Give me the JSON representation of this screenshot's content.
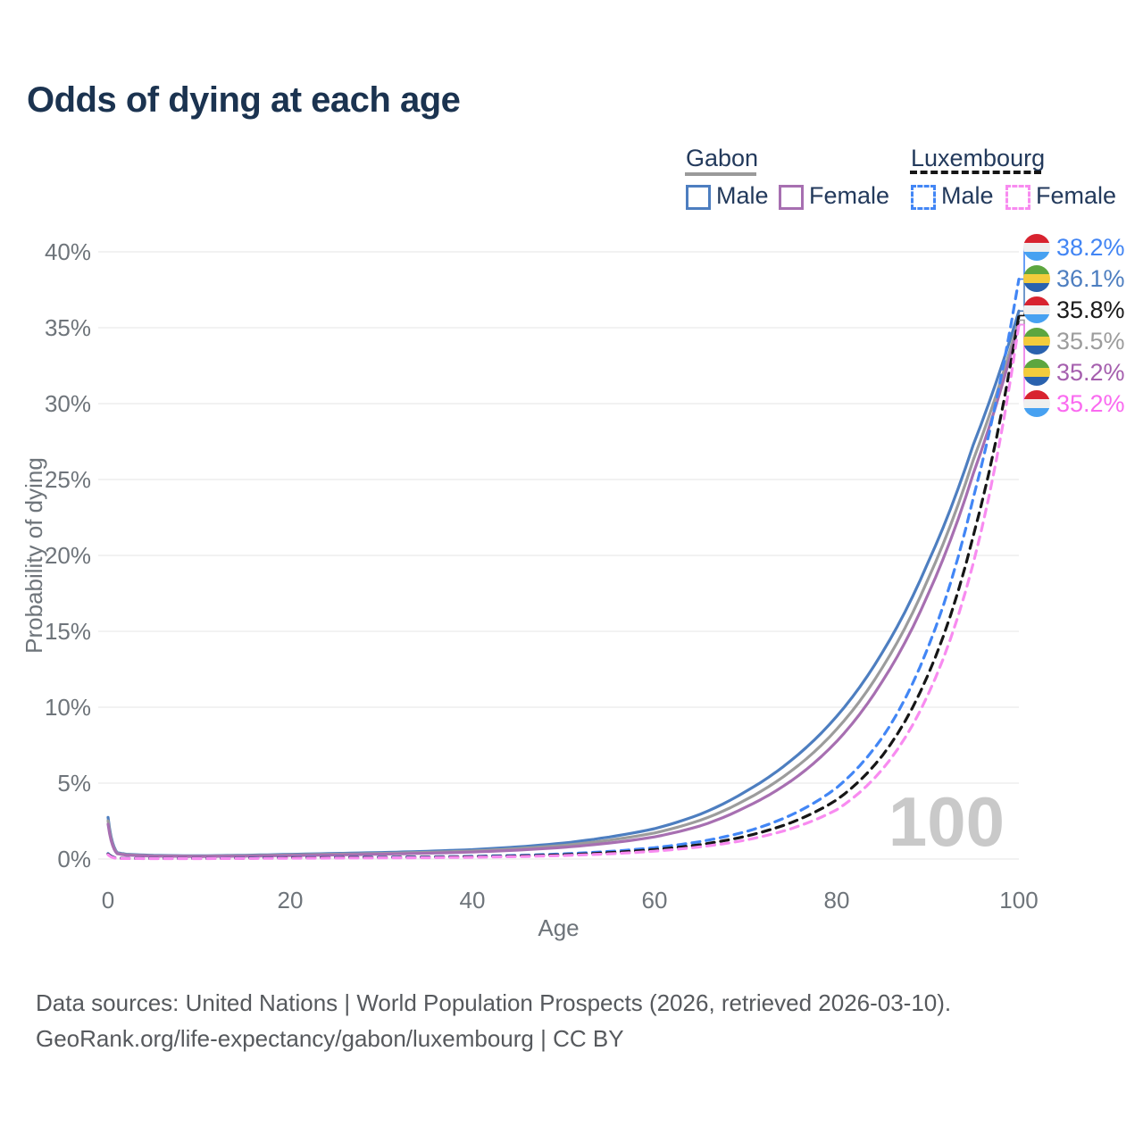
{
  "title": "Odds of dying at each age",
  "legend": {
    "groups": [
      {
        "country": "Gabon",
        "line_style": "solid",
        "underline_color": "#9a9a9a",
        "items": [
          {
            "label": "Male",
            "color": "#4d7ec0"
          },
          {
            "label": "Female",
            "color": "#a76fb1"
          }
        ]
      },
      {
        "country": "Luxembourg",
        "line_style": "dashed",
        "underline_color": "#161616",
        "items": [
          {
            "label": "Male",
            "color": "#4286f5"
          },
          {
            "label": "Female",
            "color": "#f88bf0"
          }
        ]
      }
    ]
  },
  "chart_data": {
    "type": "line",
    "title": "Odds of dying at each age",
    "xlabel": "Age",
    "ylabel": "Probability of dying",
    "xlim": [
      0,
      100
    ],
    "ylim": [
      0,
      40
    ],
    "x_ticks": [
      0,
      20,
      40,
      60,
      80,
      100
    ],
    "y_ticks": [
      0,
      5,
      10,
      15,
      20,
      25,
      30,
      35,
      40
    ],
    "y_tick_suffix": "%",
    "grid": true,
    "watermark": "100",
    "series": [
      {
        "name": "Gabon Male",
        "color": "#4d7ec0",
        "dash": false,
        "points": [
          [
            0,
            2.75
          ],
          [
            1,
            0.42
          ],
          [
            2,
            0.32
          ],
          [
            5,
            0.24
          ],
          [
            10,
            0.21
          ],
          [
            15,
            0.25
          ],
          [
            20,
            0.31
          ],
          [
            25,
            0.37
          ],
          [
            30,
            0.43
          ],
          [
            35,
            0.51
          ],
          [
            40,
            0.62
          ],
          [
            45,
            0.8
          ],
          [
            50,
            1.05
          ],
          [
            55,
            1.45
          ],
          [
            60,
            2.0
          ],
          [
            65,
            2.95
          ],
          [
            70,
            4.45
          ],
          [
            75,
            6.5
          ],
          [
            80,
            9.4
          ],
          [
            85,
            13.6
          ],
          [
            90,
            19.5
          ],
          [
            95,
            27.3
          ],
          [
            100,
            36.1
          ]
        ]
      },
      {
        "name": "Gabon Both sexes",
        "color": "#9c9c9c",
        "dash": false,
        "points": [
          [
            0,
            2.52
          ],
          [
            1,
            0.38
          ],
          [
            2,
            0.29
          ],
          [
            5,
            0.21
          ],
          [
            10,
            0.19
          ],
          [
            15,
            0.22
          ],
          [
            20,
            0.27
          ],
          [
            25,
            0.32
          ],
          [
            30,
            0.37
          ],
          [
            35,
            0.44
          ],
          [
            40,
            0.53
          ],
          [
            45,
            0.69
          ],
          [
            50,
            0.9
          ],
          [
            55,
            1.24
          ],
          [
            60,
            1.72
          ],
          [
            65,
            2.55
          ],
          [
            70,
            3.9
          ],
          [
            75,
            5.8
          ],
          [
            80,
            8.55
          ],
          [
            85,
            12.6
          ],
          [
            90,
            18.4
          ],
          [
            95,
            26.3
          ],
          [
            100,
            35.5
          ]
        ]
      },
      {
        "name": "Gabon Female",
        "color": "#a76fb1",
        "dash": false,
        "points": [
          [
            0,
            2.3
          ],
          [
            1,
            0.35
          ],
          [
            2,
            0.26
          ],
          [
            5,
            0.19
          ],
          [
            10,
            0.17
          ],
          [
            15,
            0.19
          ],
          [
            20,
            0.23
          ],
          [
            25,
            0.27
          ],
          [
            30,
            0.32
          ],
          [
            35,
            0.38
          ],
          [
            40,
            0.46
          ],
          [
            45,
            0.59
          ],
          [
            50,
            0.77
          ],
          [
            55,
            1.05
          ],
          [
            60,
            1.46
          ],
          [
            65,
            2.18
          ],
          [
            70,
            3.42
          ],
          [
            75,
            5.15
          ],
          [
            80,
            7.75
          ],
          [
            85,
            11.7
          ],
          [
            90,
            17.4
          ],
          [
            95,
            25.4
          ],
          [
            100,
            35.2
          ]
        ]
      },
      {
        "name": "Luxembourg Male",
        "color": "#4286f5",
        "dash": true,
        "points": [
          [
            0,
            0.36
          ],
          [
            1,
            0.06
          ],
          [
            2,
            0.05
          ],
          [
            5,
            0.04
          ],
          [
            10,
            0.04
          ],
          [
            15,
            0.07
          ],
          [
            20,
            0.1
          ],
          [
            25,
            0.11
          ],
          [
            30,
            0.12
          ],
          [
            35,
            0.14
          ],
          [
            40,
            0.18
          ],
          [
            45,
            0.24
          ],
          [
            50,
            0.34
          ],
          [
            55,
            0.5
          ],
          [
            60,
            0.75
          ],
          [
            65,
            1.15
          ],
          [
            70,
            1.8
          ],
          [
            75,
            2.9
          ],
          [
            80,
            4.7
          ],
          [
            85,
            8.0
          ],
          [
            90,
            13.9
          ],
          [
            95,
            23.8
          ],
          [
            100,
            38.2
          ]
        ]
      },
      {
        "name": "Luxembourg Both sexes",
        "color": "#161616",
        "dash": true,
        "points": [
          [
            0,
            0.33
          ],
          [
            1,
            0.05
          ],
          [
            2,
            0.04
          ],
          [
            5,
            0.035
          ],
          [
            10,
            0.035
          ],
          [
            15,
            0.055
          ],
          [
            20,
            0.08
          ],
          [
            25,
            0.09
          ],
          [
            30,
            0.1
          ],
          [
            35,
            0.12
          ],
          [
            40,
            0.15
          ],
          [
            45,
            0.2
          ],
          [
            50,
            0.28
          ],
          [
            55,
            0.42
          ],
          [
            60,
            0.62
          ],
          [
            65,
            0.95
          ],
          [
            70,
            1.5
          ],
          [
            75,
            2.4
          ],
          [
            80,
            3.9
          ],
          [
            85,
            6.8
          ],
          [
            90,
            12.1
          ],
          [
            95,
            21.3
          ],
          [
            100,
            35.8
          ]
        ]
      },
      {
        "name": "Luxembourg Female",
        "color": "#f88bf0",
        "dash": true,
        "points": [
          [
            0,
            0.29
          ],
          [
            1,
            0.04
          ],
          [
            2,
            0.035
          ],
          [
            5,
            0.03
          ],
          [
            10,
            0.03
          ],
          [
            15,
            0.04
          ],
          [
            20,
            0.055
          ],
          [
            25,
            0.065
          ],
          [
            30,
            0.075
          ],
          [
            35,
            0.09
          ],
          [
            40,
            0.12
          ],
          [
            45,
            0.16
          ],
          [
            50,
            0.23
          ],
          [
            55,
            0.34
          ],
          [
            60,
            0.52
          ],
          [
            65,
            0.8
          ],
          [
            70,
            1.25
          ],
          [
            75,
            2.0
          ],
          [
            80,
            3.25
          ],
          [
            85,
            5.9
          ],
          [
            90,
            10.8
          ],
          [
            95,
            19.5
          ],
          [
            100,
            35.2
          ]
        ]
      }
    ],
    "end_labels": [
      {
        "text": "38.2%",
        "color": "#4285f4",
        "flag": "luxembourg",
        "series_index": 3
      },
      {
        "text": "36.1%",
        "color": "#4d7ec0",
        "flag": "gabon",
        "series_index": 0
      },
      {
        "text": "35.8%",
        "color": "#1a1a1a",
        "flag": "luxembourg",
        "series_index": 4
      },
      {
        "text": "35.5%",
        "color": "#9c9c9c",
        "flag": "gabon",
        "series_index": 1
      },
      {
        "text": "35.2%",
        "color": "#a55fae",
        "flag": "gabon",
        "series_index": 2
      },
      {
        "text": "35.2%",
        "color": "#fa6af0",
        "flag": "luxembourg",
        "series_index": 5
      }
    ],
    "flags": {
      "gabon": [
        "#5da63f",
        "#f3cc3c",
        "#2a62ae"
      ],
      "luxembourg": [
        "#d8232f",
        "#efefef",
        "#47a1f1"
      ]
    }
  },
  "footer": {
    "line1": "Data sources: United Nations | World Population Prospects (2026, retrieved 2026-03-10).",
    "line2": "GeoRank.org/life-expectancy/gabon/luxembourg | CC BY"
  }
}
